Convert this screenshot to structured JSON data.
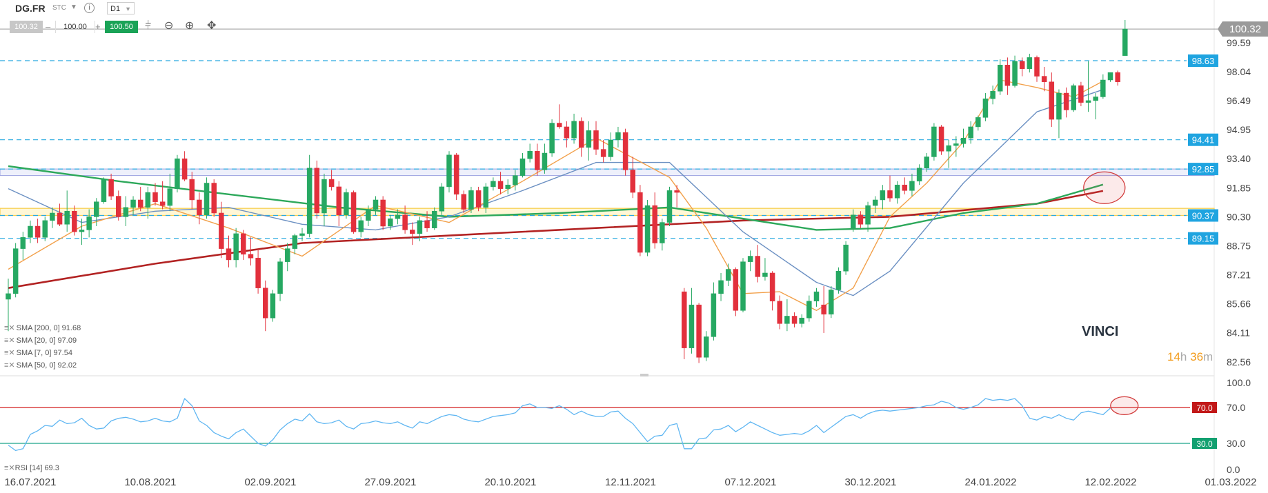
{
  "header": {
    "symbol": "DG.FR",
    "exchange_badge": "STC",
    "timeframe": "D1",
    "bid": "100.32",
    "quantity": "100.00",
    "ask": "100.50",
    "minus": "–",
    "plus": "+",
    "dropdown_icon": "chevron-down-icon",
    "info_icon": "info-icon"
  },
  "tools": [
    "candles-icon",
    "zoom-out-icon",
    "zoom-in-icon",
    "crosshair-icon"
  ],
  "colors": {
    "up": "#26a862",
    "down": "#e2303c",
    "sma200": "#b22222",
    "sma50": "#2ca85a",
    "sma20": "#6a8fc2",
    "sma7": "#f2a04a",
    "dash": "#29a9e0",
    "label_bg": "#1fa4e0",
    "yellow_band": "#f7cf52",
    "purple_band": "#9aa0e0",
    "rsi": "#5fb6f2"
  },
  "instrument_name": "VINCI",
  "timer": {
    "h": "14",
    "h_unit": "h",
    "m": "36",
    "m_unit": "m"
  },
  "legend": [
    {
      "text": "SMA [200, 0] 91.68"
    },
    {
      "text": "SMA [20, 0] 97.09"
    },
    {
      "text": "SMA [7, 0] 97.54"
    },
    {
      "text": "SMA [50, 0] 92.02"
    }
  ],
  "rsi_legend": "RSI [14] 69.3",
  "chart_data": {
    "type": "candlestick",
    "symbol": "DG.FR",
    "timeframe": "D1",
    "x_labels": [
      "16.07.2021",
      "10.08.2021",
      "02.09.2021",
      "27.09.2021",
      "20.10.2021",
      "12.11.2021",
      "07.12.2021",
      "30.12.2021",
      "24.01.2022",
      "12.02.2022",
      "01.03.2022"
    ],
    "y_ticks": [
      "99.59",
      "98.04",
      "96.49",
      "94.95",
      "93.40",
      "91.85",
      "90.30",
      "88.75",
      "87.21",
      "85.66",
      "84.11",
      "82.56"
    ],
    "ylim": [
      82.0,
      101.5
    ],
    "current_price": "100.32",
    "horizontal_levels": [
      "98.63",
      "94.41",
      "92.85",
      "90.37",
      "89.15"
    ],
    "yellow_band": [
      90.37,
      90.75
    ],
    "purple_band": [
      92.5,
      92.85
    ],
    "candles": [
      [
        85.9,
        87.0,
        84.2,
        86.2
      ],
      [
        86.2,
        88.9,
        86.0,
        88.6
      ],
      [
        88.6,
        89.5,
        88.0,
        89.2
      ],
      [
        89.2,
        90.1,
        88.9,
        89.8
      ],
      [
        89.8,
        90.2,
        88.9,
        89.2
      ],
      [
        89.2,
        90.3,
        89.0,
        90.1
      ],
      [
        90.1,
        90.8,
        89.7,
        90.5
      ],
      [
        90.5,
        91.0,
        89.8,
        89.9
      ],
      [
        89.9,
        91.7,
        89.5,
        90.6
      ],
      [
        90.6,
        90.9,
        89.3,
        89.5
      ],
      [
        89.5,
        90.2,
        88.8,
        89.6
      ],
      [
        89.6,
        90.7,
        89.2,
        90.3
      ],
      [
        90.3,
        91.3,
        89.8,
        91.1
      ],
      [
        91.1,
        92.4,
        91.0,
        92.3
      ],
      [
        92.3,
        92.6,
        91.2,
        91.4
      ],
      [
        91.4,
        91.7,
        90.1,
        90.3
      ],
      [
        90.3,
        91.4,
        89.8,
        90.8
      ],
      [
        90.8,
        91.4,
        90.4,
        91.2
      ],
      [
        91.2,
        91.9,
        90.6,
        90.8
      ],
      [
        90.8,
        91.9,
        90.2,
        91.6
      ],
      [
        91.6,
        92.1,
        90.9,
        91.1
      ],
      [
        91.1,
        92.2,
        90.7,
        90.9
      ],
      [
        90.9,
        92.6,
        90.6,
        91.8
      ],
      [
        91.8,
        93.6,
        91.6,
        93.4
      ],
      [
        93.4,
        93.8,
        92.2,
        92.3
      ],
      [
        92.3,
        92.7,
        90.7,
        91.2
      ],
      [
        91.2,
        91.6,
        89.9,
        90.4
      ],
      [
        90.4,
        92.4,
        90.2,
        92.1
      ],
      [
        92.1,
        92.3,
        90.3,
        90.5
      ],
      [
        90.5,
        91.1,
        88.1,
        88.6
      ],
      [
        88.6,
        89.3,
        87.6,
        88.0
      ],
      [
        88.0,
        89.7,
        87.6,
        89.4
      ],
      [
        89.4,
        89.6,
        88.0,
        88.3
      ],
      [
        88.3,
        89.2,
        87.7,
        88.1
      ],
      [
        88.1,
        88.6,
        86.2,
        86.5
      ],
      [
        86.5,
        86.9,
        84.2,
        84.9
      ],
      [
        84.9,
        86.4,
        84.7,
        86.2
      ],
      [
        86.2,
        88.1,
        85.8,
        87.9
      ],
      [
        87.9,
        88.9,
        87.4,
        88.6
      ],
      [
        88.6,
        89.4,
        88.3,
        89.3
      ],
      [
        89.3,
        89.7,
        89.0,
        89.4
      ],
      [
        89.4,
        93.6,
        89.2,
        92.9
      ],
      [
        92.9,
        93.3,
        90.2,
        90.5
      ],
      [
        90.5,
        92.6,
        89.8,
        92.3
      ],
      [
        92.3,
        92.8,
        91.7,
        91.9
      ],
      [
        91.9,
        92.2,
        89.8,
        90.4
      ],
      [
        90.4,
        91.8,
        90.2,
        91.6
      ],
      [
        91.6,
        91.7,
        89.4,
        89.5
      ],
      [
        89.5,
        90.3,
        89.2,
        90.1
      ],
      [
        90.1,
        90.9,
        89.8,
        90.7
      ],
      [
        90.7,
        91.4,
        90.4,
        91.2
      ],
      [
        91.2,
        91.4,
        89.6,
        89.8
      ],
      [
        89.8,
        90.4,
        89.6,
        90.2
      ],
      [
        90.2,
        90.7,
        89.9,
        90.4
      ],
      [
        90.4,
        90.9,
        89.4,
        89.6
      ],
      [
        89.6,
        90.0,
        88.8,
        89.4
      ],
      [
        89.4,
        90.3,
        89.0,
        90.1
      ],
      [
        90.1,
        90.6,
        89.5,
        89.7
      ],
      [
        89.7,
        90.8,
        89.6,
        90.6
      ],
      [
        90.6,
        92.1,
        90.4,
        91.9
      ],
      [
        91.9,
        93.8,
        91.6,
        93.6
      ],
      [
        93.6,
        93.7,
        91.2,
        91.5
      ],
      [
        91.5,
        91.7,
        90.5,
        90.7
      ],
      [
        90.7,
        91.9,
        90.5,
        91.7
      ],
      [
        91.7,
        91.9,
        90.6,
        90.8
      ],
      [
        90.8,
        92.1,
        90.5,
        91.9
      ],
      [
        91.9,
        92.4,
        91.7,
        92.2
      ],
      [
        92.2,
        92.7,
        91.5,
        91.8
      ],
      [
        91.8,
        92.3,
        91.5,
        92.0
      ],
      [
        92.0,
        92.8,
        91.7,
        92.5
      ],
      [
        92.5,
        93.7,
        92.4,
        93.4
      ],
      [
        93.4,
        94.2,
        93.2,
        93.8
      ],
      [
        93.8,
        94.2,
        92.5,
        92.8
      ],
      [
        92.8,
        94.2,
        92.6,
        93.7
      ],
      [
        93.7,
        95.5,
        93.5,
        95.3
      ],
      [
        95.3,
        96.3,
        95.0,
        95.1
      ],
      [
        95.1,
        95.4,
        94.0,
        94.5
      ],
      [
        94.5,
        95.8,
        94.2,
        95.4
      ],
      [
        95.4,
        95.6,
        93.5,
        94.0
      ],
      [
        94.0,
        95.4,
        93.3,
        94.9
      ],
      [
        94.9,
        95.4,
        93.6,
        93.9
      ],
      [
        93.9,
        94.4,
        93.2,
        93.5
      ],
      [
        93.5,
        94.8,
        93.3,
        94.4
      ],
      [
        94.4,
        95.1,
        94.0,
        94.8
      ],
      [
        94.8,
        95.0,
        92.5,
        92.8
      ],
      [
        92.8,
        93.5,
        91.3,
        91.6
      ],
      [
        91.6,
        92.0,
        88.2,
        88.4
      ],
      [
        88.4,
        91.2,
        88.2,
        90.9
      ],
      [
        90.9,
        91.6,
        88.6,
        88.9
      ],
      [
        88.9,
        90.2,
        88.5,
        90.0
      ],
      [
        90.0,
        91.9,
        89.8,
        91.7
      ],
      [
        91.7,
        92.0,
        90.8,
        91.6
      ],
      [
        86.3,
        86.5,
        82.7,
        83.3
      ],
      [
        83.3,
        86.5,
        83.0,
        85.6
      ],
      [
        85.6,
        85.7,
        82.5,
        82.8
      ],
      [
        82.8,
        84.2,
        82.6,
        83.9
      ],
      [
        83.9,
        86.8,
        83.7,
        86.2
      ],
      [
        86.2,
        87.3,
        85.8,
        86.9
      ],
      [
        86.9,
        87.8,
        86.6,
        87.5
      ],
      [
        87.5,
        87.6,
        85.0,
        85.3
      ],
      [
        85.3,
        88.1,
        85.2,
        87.9
      ],
      [
        87.9,
        88.5,
        87.4,
        88.2
      ],
      [
        88.2,
        88.8,
        86.8,
        87.1
      ],
      [
        87.1,
        88.1,
        86.9,
        87.3
      ],
      [
        87.3,
        87.4,
        85.3,
        85.8
      ],
      [
        85.8,
        86.1,
        84.3,
        84.6
      ],
      [
        84.6,
        85.9,
        84.2,
        85.0
      ],
      [
        85.0,
        85.2,
        84.4,
        84.6
      ],
      [
        84.6,
        85.1,
        84.4,
        84.9
      ],
      [
        84.9,
        86.1,
        84.7,
        85.8
      ],
      [
        85.8,
        86.5,
        85.5,
        86.3
      ],
      [
        85.6,
        86.6,
        84.1,
        85.1
      ],
      [
        85.1,
        86.6,
        84.9,
        86.4
      ],
      [
        86.4,
        87.6,
        86.2,
        87.4
      ],
      [
        87.4,
        89.0,
        87.2,
        88.8
      ],
      [
        89.7,
        90.7,
        89.5,
        90.4
      ],
      [
        90.4,
        90.6,
        89.7,
        89.9
      ],
      [
        89.9,
        91.1,
        89.5,
        90.9
      ],
      [
        90.9,
        91.4,
        90.5,
        91.2
      ],
      [
        91.2,
        92.0,
        90.7,
        91.7
      ],
      [
        91.7,
        92.5,
        91.1,
        91.3
      ],
      [
        91.3,
        92.2,
        91.0,
        92.0
      ],
      [
        92.0,
        92.4,
        91.5,
        91.7
      ],
      [
        91.7,
        92.6,
        91.4,
        92.2
      ],
      [
        92.2,
        93.1,
        92.0,
        92.9
      ],
      [
        92.9,
        93.7,
        92.7,
        93.5
      ],
      [
        93.5,
        95.3,
        93.3,
        95.1
      ],
      [
        95.1,
        95.2,
        93.6,
        93.8
      ],
      [
        93.8,
        94.4,
        92.9,
        94.1
      ],
      [
        94.1,
        94.6,
        93.5,
        94.2
      ],
      [
        94.2,
        95.0,
        94.0,
        94.5
      ],
      [
        94.5,
        95.4,
        94.2,
        95.1
      ],
      [
        95.1,
        95.7,
        94.9,
        95.6
      ],
      [
        95.6,
        96.9,
        95.4,
        96.6
      ],
      [
        96.6,
        97.3,
        96.3,
        97.0
      ],
      [
        97.0,
        98.7,
        96.8,
        98.4
      ],
      [
        98.4,
        98.8,
        96.8,
        97.3
      ],
      [
        97.3,
        98.9,
        97.2,
        98.6
      ],
      [
        98.6,
        98.8,
        97.8,
        98.2
      ],
      [
        98.2,
        99.0,
        98.0,
        98.8
      ],
      [
        98.8,
        98.9,
        97.5,
        97.8
      ],
      [
        97.8,
        98.3,
        97.0,
        97.5
      ],
      [
        97.5,
        98.0,
        95.1,
        95.5
      ],
      [
        95.5,
        97.1,
        94.5,
        96.9
      ],
      [
        96.9,
        97.2,
        95.6,
        96.0
      ],
      [
        96.0,
        97.4,
        95.9,
        97.3
      ],
      [
        97.3,
        97.5,
        96.2,
        96.4
      ],
      [
        96.4,
        98.6,
        95.9,
        96.5
      ],
      [
        96.5,
        96.9,
        95.5,
        96.7
      ],
      [
        96.7,
        97.9,
        96.6,
        97.6
      ],
      [
        97.6,
        98.0,
        97.5,
        98.0
      ],
      [
        98.0,
        98.1,
        97.3,
        97.5
      ],
      [
        98.9,
        100.8,
        98.9,
        100.32
      ]
    ],
    "series": [
      {
        "name": "SMA [200, 0] 91.68",
        "x": [
          0,
          20,
          40,
          60,
          80,
          100,
          120,
          140,
          149
        ],
        "values": [
          86.5,
          87.8,
          88.9,
          89.3,
          89.7,
          90.1,
          90.3,
          91.0,
          91.68
        ]
      },
      {
        "name": "SMA [50, 0] 92.02",
        "x": [
          0,
          15,
          30,
          45,
          60,
          75,
          90,
          110,
          120,
          130,
          140,
          149
        ],
        "values": [
          93.0,
          92.2,
          91.5,
          90.8,
          90.3,
          90.5,
          90.8,
          89.6,
          89.7,
          90.5,
          91.0,
          92.02
        ]
      },
      {
        "name": "SMA [20, 0] 97.09",
        "x": [
          0,
          10,
          20,
          30,
          40,
          50,
          60,
          70,
          80,
          90,
          100,
          110,
          115,
          120,
          130,
          140,
          149
        ],
        "values": [
          91.8,
          90.0,
          90.6,
          90.8,
          89.9,
          89.6,
          90.3,
          91.7,
          93.2,
          93.2,
          89.5,
          86.8,
          86.1,
          87.4,
          92.1,
          95.9,
          97.09
        ]
      },
      {
        "name": "SMA [7, 0] 97.54",
        "x": [
          0,
          10,
          20,
          30,
          40,
          50,
          60,
          70,
          80,
          90,
          95,
          100,
          105,
          110,
          115,
          120,
          125,
          130,
          135,
          140,
          145,
          149
        ],
        "values": [
          87.5,
          89.8,
          91.0,
          89.7,
          88.2,
          90.9,
          90.0,
          92.2,
          94.5,
          92.4,
          89.7,
          86.2,
          86.3,
          85.3,
          86.5,
          90.3,
          92.1,
          94.3,
          97.6,
          97.2,
          96.7,
          97.54
        ]
      }
    ],
    "rsi": {
      "name": "RSI [14] 69.3",
      "ylim": [
        0,
        100
      ],
      "y_ticks": [
        "100.0",
        "70.0",
        "30.0",
        "0.0"
      ],
      "levels": [
        "70.0",
        "30.0"
      ],
      "values": [
        28,
        22,
        24,
        40,
        44,
        50,
        49,
        56,
        52,
        53,
        58,
        50,
        46,
        47,
        55,
        58,
        59,
        57,
        54,
        55,
        58,
        55,
        54,
        58,
        80,
        72,
        55,
        50,
        42,
        38,
        35,
        42,
        46,
        38,
        30,
        27,
        34,
        45,
        52,
        57,
        55,
        63,
        54,
        52,
        53,
        56,
        49,
        46,
        52,
        53,
        55,
        53,
        52,
        54,
        50,
        47,
        54,
        52,
        56,
        60,
        62,
        61,
        57,
        55,
        54,
        57,
        60,
        61,
        62,
        64,
        72,
        74,
        70,
        70,
        69,
        72,
        68,
        62,
        66,
        62,
        60,
        60,
        65,
        66,
        58,
        52,
        42,
        32,
        38,
        39,
        50,
        52,
        24,
        24,
        35,
        36,
        45,
        46,
        50,
        43,
        48,
        54,
        50,
        46,
        42,
        39,
        40,
        41,
        40,
        44,
        50,
        42,
        48,
        54,
        60,
        62,
        58,
        63,
        66,
        67,
        66,
        67,
        68,
        69,
        70,
        72,
        73,
        77,
        75,
        70,
        68,
        70,
        73,
        80,
        78,
        79,
        78,
        80,
        72,
        58,
        56,
        60,
        58,
        62,
        58,
        56,
        64,
        66,
        64,
        62,
        69.3
      ]
    }
  }
}
